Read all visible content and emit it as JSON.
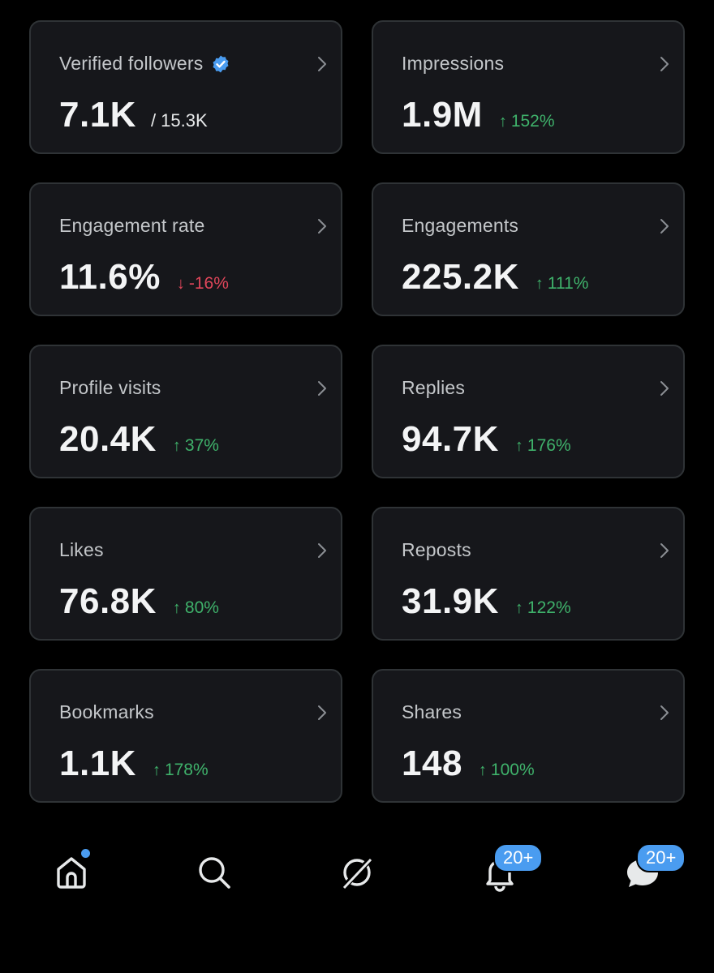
{
  "cards": [
    {
      "label": "Verified followers",
      "value": "7.1K",
      "total": "/ 15.3K"
    },
    {
      "label": "Impressions",
      "value": "1.9M",
      "arrow": "↑",
      "delta": "152%",
      "trend": "up"
    },
    {
      "label": "Engagement rate",
      "value": "11.6%",
      "arrow": "↓",
      "delta": "-16%",
      "trend": "down"
    },
    {
      "label": "Engagements",
      "value": "225.2K",
      "arrow": "↑",
      "delta": "111%",
      "trend": "up"
    },
    {
      "label": "Profile visits",
      "value": "20.4K",
      "arrow": "↑",
      "delta": "37%",
      "trend": "up"
    },
    {
      "label": "Replies",
      "value": "94.7K",
      "arrow": "↑",
      "delta": "176%",
      "trend": "up"
    },
    {
      "label": "Likes",
      "value": "76.8K",
      "arrow": "↑",
      "delta": "80%",
      "trend": "up"
    },
    {
      "label": "Reposts",
      "value": "31.9K",
      "arrow": "↑",
      "delta": "122%",
      "trend": "up"
    },
    {
      "label": "Bookmarks",
      "value": "1.1K",
      "arrow": "↑",
      "delta": "178%",
      "trend": "up"
    },
    {
      "label": "Shares",
      "value": "148",
      "arrow": "↑",
      "delta": "100%",
      "trend": "up"
    }
  ],
  "nav": {
    "notifications_badge": "20+",
    "messages_badge": "20+"
  },
  "colors": {
    "background": "#000000",
    "card": "#16171b",
    "up": "#3fb26b",
    "down": "#e0465a",
    "accent": "#4a9cf0"
  }
}
